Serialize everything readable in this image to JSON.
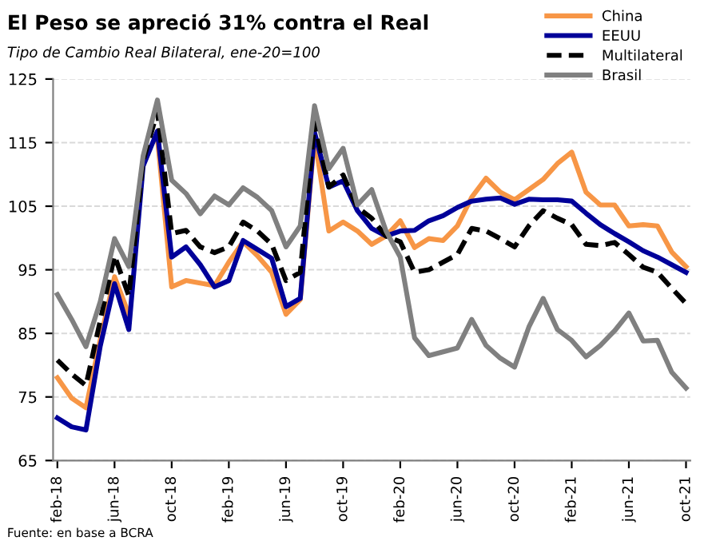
{
  "chart_data": {
    "type": "line",
    "title": "El Peso se apreció 31% contra el Real",
    "subtitle": "Tipo de Cambio Real Bilateral, ene-20=100",
    "annotations": [
      "Fuente: en base a BCRA"
    ],
    "categories": [
      "feb-18",
      null,
      null,
      null,
      "jun-18",
      null,
      null,
      null,
      "oct-18",
      null,
      null,
      null,
      "feb-19",
      null,
      null,
      null,
      "jun-19",
      null,
      null,
      null,
      "oct-19",
      null,
      null,
      null,
      "feb-20",
      null,
      null,
      null,
      "jun-20",
      null,
      null,
      null,
      "oct-20",
      null,
      null,
      null,
      "feb-21",
      null,
      null,
      null,
      "jun-21",
      null,
      null,
      null,
      "oct-21"
    ],
    "series": [
      {
        "name": "China",
        "color": "#f79646",
        "line_style": "solid",
        "values": [
          78,
          74.8,
          73.3,
          84,
          93.9,
          88,
          null,
          115.8,
          92.3,
          93.3,
          92.9,
          92.5,
          96.2,
          99.4,
          97.2,
          94.6,
          88,
          90.3,
          115.9,
          101.1,
          102.5,
          101.1,
          99,
          100.3,
          102.7,
          98.5,
          99.9,
          99.6,
          101.9,
          106.4,
          109.4,
          107.2,
          106,
          107.6,
          109.2,
          111.7,
          113.5,
          107.2,
          105.2,
          105.2,
          101.9,
          102.1,
          101.9,
          97.8,
          95.5
        ]
      },
      {
        "name": "EEUU",
        "color": "#000099",
        "line_style": "solid",
        "values": [
          71.7,
          70.3,
          69.8,
          83,
          92.8,
          85.6,
          111.3,
          116.8,
          97,
          98.6,
          95.8,
          92.3,
          93.3,
          99.6,
          98.2,
          96.8,
          89.2,
          90.5,
          116.6,
          108,
          109,
          104.3,
          101.5,
          100.3,
          101.1,
          101.2,
          102.7,
          103.5,
          104.8,
          105.8,
          106.1,
          106.3,
          105.3,
          106.1,
          106,
          106,
          105.8,
          103.9,
          102.1,
          100.7,
          99.4,
          98,
          97,
          95.8,
          94.6
        ]
      },
      {
        "name": "Multilateral",
        "color": "#000000",
        "line_style": "dashed",
        "values": [
          80.8,
          78.6,
          76.8,
          87,
          97.2,
          90.9,
          112.1,
          119.9,
          100.7,
          101.2,
          98.6,
          97.7,
          98.6,
          102.5,
          101.1,
          99,
          93.3,
          94.6,
          118.2,
          108,
          109.9,
          104.8,
          103.1,
          100.3,
          99.4,
          94.6,
          95,
          96.2,
          97.4,
          101.5,
          101.1,
          99.9,
          98.6,
          101.9,
          104.3,
          103.1,
          102.1,
          99,
          98.8,
          99.3,
          97.4,
          95.4,
          94.6,
          92.1,
          89.7
        ]
      },
      {
        "name": "Brasil",
        "color": "#808080",
        "line_style": "solid",
        "values": [
          91.1,
          87.2,
          82.9,
          90,
          99.9,
          95.5,
          112.9,
          121.7,
          109.1,
          107,
          103.8,
          106.6,
          105.2,
          107.9,
          106.4,
          104.3,
          98.6,
          101.9,
          120.8,
          110.9,
          114.1,
          105.2,
          107.6,
          101.1,
          97,
          84.3,
          81.5,
          82.1,
          82.7,
          87.2,
          83.1,
          81.1,
          79.7,
          86,
          90.5,
          85.6,
          83.9,
          81.3,
          83.1,
          85.4,
          88.2,
          83.8,
          83.9,
          78.9,
          76.4
        ]
      }
    ],
    "ylim": [
      65,
      125
    ],
    "yticks": [
      65,
      75,
      85,
      95,
      105,
      115,
      125
    ],
    "grid": "y",
    "legend": "top right",
    "marker": "none"
  }
}
